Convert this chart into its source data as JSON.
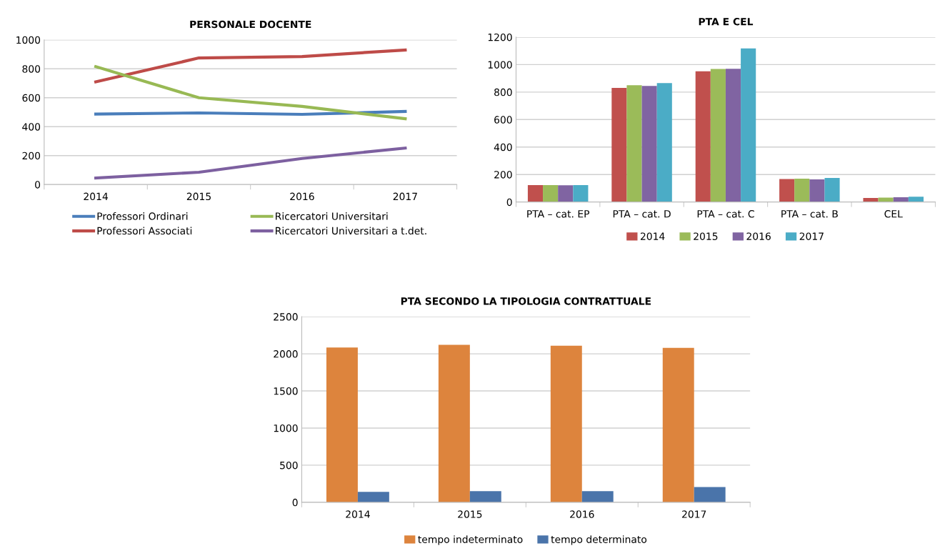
{
  "chart_data": [
    {
      "type": "line",
      "title": "PERSONALE DOCENTE",
      "categories": [
        "2014",
        "2015",
        "2016",
        "2017"
      ],
      "ylim": [
        0,
        1000
      ],
      "yticks": [
        0,
        200,
        400,
        600,
        800,
        1000
      ],
      "grid": "y",
      "legend": "bottom",
      "marker": "none",
      "line_style": "solid",
      "series": [
        {
          "name": "Professori Ordinari",
          "color": "#4a7ebb",
          "values": [
            487,
            495,
            485,
            505
          ]
        },
        {
          "name": "Professori Associati",
          "color": "#be4b48",
          "values": [
            710,
            875,
            885,
            930
          ]
        },
        {
          "name": "Ricercatori Universitari",
          "color": "#98b954",
          "values": [
            815,
            600,
            540,
            455
          ]
        },
        {
          "name": "Ricercatori Universitari a t.det.",
          "color": "#7d60a0",
          "values": [
            45,
            85,
            180,
            252
          ]
        }
      ]
    },
    {
      "type": "bar",
      "title": "PTA E CEL",
      "categories": [
        "PTA – cat. EP",
        "PTA – cat. D",
        "PTA – cat. C",
        "PTA – cat. B",
        "CEL"
      ],
      "ylim": [
        0,
        1200
      ],
      "yticks": [
        0,
        200,
        400,
        600,
        800,
        1000,
        1200
      ],
      "grid": "y",
      "legend": "bottom",
      "series": [
        {
          "name": "2014",
          "color": "#c0504d",
          "values": [
            123,
            830,
            952,
            168,
            30
          ]
        },
        {
          "name": "2015",
          "color": "#9bbb59",
          "values": [
            123,
            850,
            968,
            170,
            32
          ]
        },
        {
          "name": "2016",
          "color": "#8064a2",
          "values": [
            122,
            845,
            970,
            165,
            35
          ]
        },
        {
          "name": "2017",
          "color": "#4bacc6",
          "values": [
            123,
            865,
            1118,
            175,
            38
          ]
        }
      ]
    },
    {
      "type": "bar",
      "title": "PTA SECONDO LA TIPOLOGIA CONTRATTUALE",
      "categories": [
        "2014",
        "2015",
        "2016",
        "2017"
      ],
      "ylim": [
        0,
        2500
      ],
      "yticks": [
        0,
        500,
        1000,
        1500,
        2000,
        2500
      ],
      "grid": "y",
      "legend": "bottom",
      "series": [
        {
          "name": "tempo indeterminato",
          "color": "#dd843d",
          "values": [
            2085,
            2120,
            2110,
            2080
          ]
        },
        {
          "name": "tempo determinato",
          "color": "#4a74aa",
          "values": [
            140,
            150,
            150,
            205
          ]
        }
      ]
    }
  ]
}
